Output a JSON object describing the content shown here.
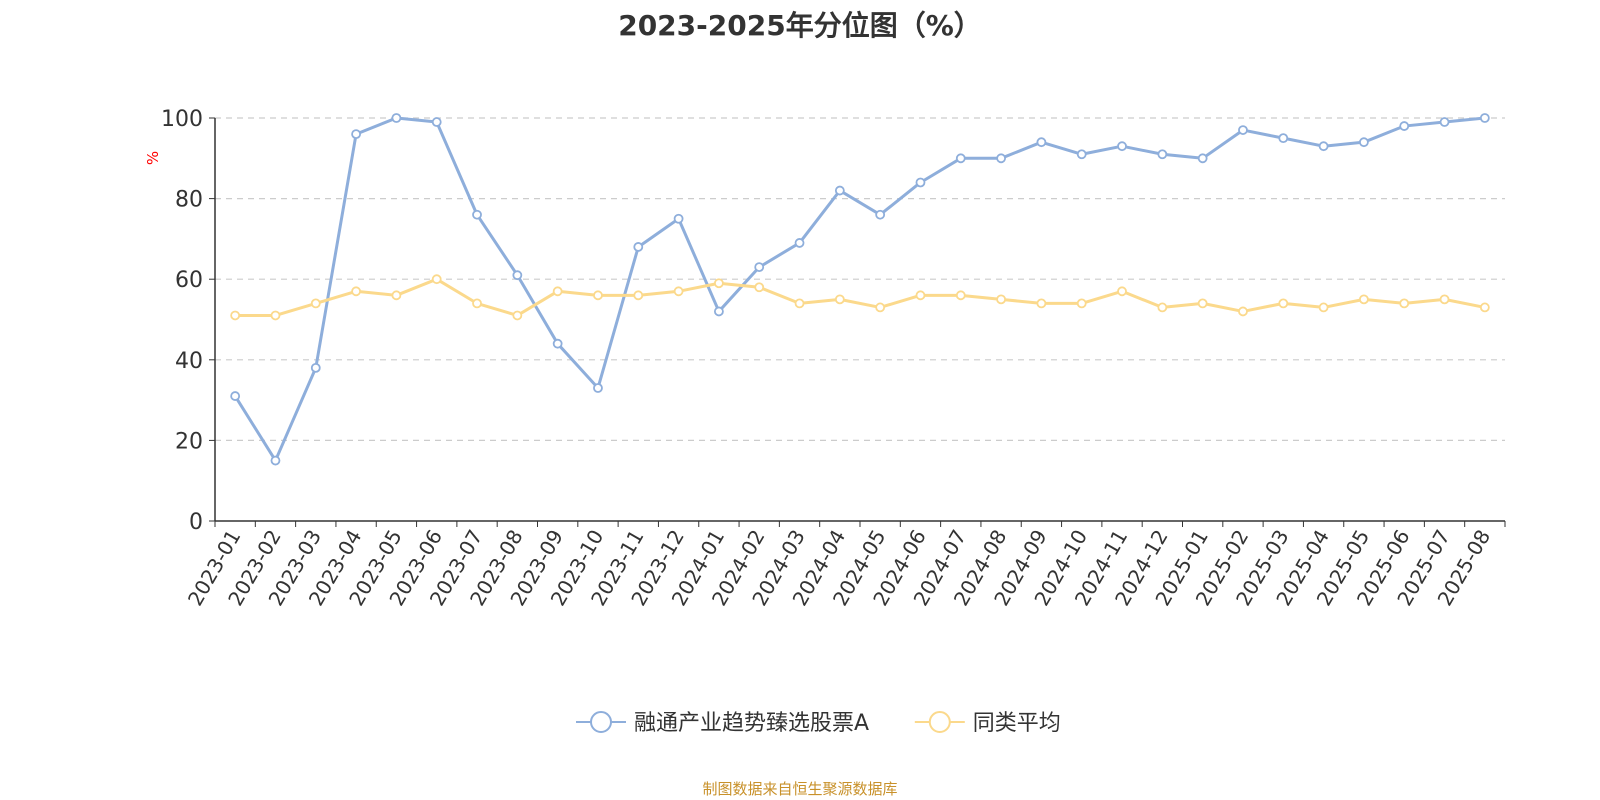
{
  "chart_data": {
    "type": "line",
    "title": "2023-2025年分位图（%）",
    "ylabel": "%",
    "xlabel": "",
    "ylim": [
      0,
      100
    ],
    "yticks": [
      0,
      20,
      40,
      60,
      80,
      100
    ],
    "grid": true,
    "legend_position": "bottom-center",
    "categories": [
      "2023-01",
      "2023-02",
      "2023-03",
      "2023-04",
      "2023-05",
      "2023-06",
      "2023-07",
      "2023-08",
      "2023-09",
      "2023-10",
      "2023-11",
      "2023-12",
      "2024-01",
      "2024-02",
      "2024-03",
      "2024-04",
      "2024-05",
      "2024-06",
      "2024-07",
      "2024-08",
      "2024-09",
      "2024-10",
      "2024-11",
      "2024-12",
      "2025-01",
      "2025-02",
      "2025-03",
      "2025-04",
      "2025-05",
      "2025-06",
      "2025-07",
      "2025-08"
    ],
    "series": [
      {
        "name": "融通产业趋势臻选股票A",
        "color": "#8eaedb",
        "values": [
          31,
          15,
          38,
          96,
          100,
          99,
          76,
          61,
          44,
          33,
          68,
          75,
          52,
          63,
          69,
          82,
          76,
          84,
          90,
          90,
          94,
          91,
          93,
          91,
          90,
          97,
          95,
          93,
          94,
          98,
          99,
          100
        ]
      },
      {
        "name": "同类平均",
        "color": "#fbd98c",
        "values": [
          51,
          51,
          54,
          57,
          56,
          60,
          54,
          51,
          57,
          56,
          56,
          57,
          59,
          58,
          54,
          55,
          53,
          56,
          56,
          55,
          54,
          54,
          57,
          53,
          54,
          52,
          54,
          53,
          55,
          54,
          55,
          53
        ]
      }
    ]
  },
  "source_note": "制图数据来自恒生聚源数据库",
  "colors": {
    "axis": "#333333",
    "grid": "#cccccc",
    "ylabel": "#ff0000",
    "title": "#333333",
    "source": "#c8912a"
  }
}
